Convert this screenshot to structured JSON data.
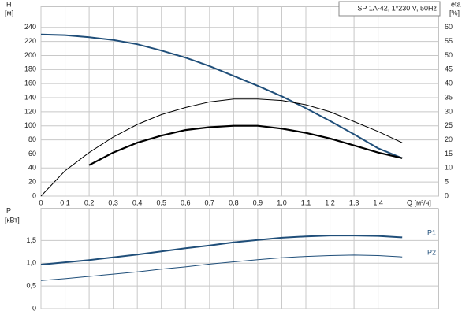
{
  "chart_data": [
    {
      "type": "line",
      "title": "SP 1A-42, 1*230 V, 50Hz",
      "y_label": "H",
      "y_unit": "[м]",
      "y2_label": "eta",
      "y2_unit": "[%]",
      "x_label": "Q [м³/ч]",
      "x": [
        0,
        0.1,
        0.2,
        0.3,
        0.4,
        0.5,
        0.6,
        0.7,
        0.8,
        0.9,
        1.0,
        1.1,
        1.2,
        1.3,
        1.4,
        1.5
      ],
      "xlim": [
        0,
        1.65
      ],
      "xticks": [
        0,
        {
          "value": 0.1,
          "label": "0,1"
        },
        {
          "value": 0.2,
          "label": "0,2"
        },
        {
          "value": 0.3,
          "label": "0,3"
        },
        {
          "value": 0.4,
          "label": "0,4"
        },
        {
          "value": 0.5,
          "label": "0,5"
        },
        {
          "value": 0.6,
          "label": "0,6"
        },
        {
          "value": 0.7,
          "label": "0,7"
        },
        {
          "value": 0.8,
          "label": "0,8"
        },
        {
          "value": 0.9,
          "label": "0,9"
        },
        {
          "value": 1.0,
          "label": "1,0"
        },
        {
          "value": 1.1,
          "label": "1,1"
        },
        {
          "value": 1.2,
          "label": "1,2"
        },
        {
          "value": 1.3,
          "label": "1,3"
        },
        {
          "value": 1.4,
          "label": "1,4"
        }
      ],
      "ylim": [
        0,
        270
      ],
      "yticks": [
        0,
        20,
        40,
        60,
        80,
        100,
        120,
        140,
        160,
        180,
        200,
        220,
        240
      ],
      "y2lim": [
        0,
        67.5
      ],
      "y2ticks": [
        0,
        5,
        10,
        15,
        20,
        25,
        30,
        35,
        40,
        45,
        50,
        55,
        60
      ],
      "grid": true,
      "series": [
        {
          "color": "#1f4e79",
          "line_width": 2,
          "values": [
            230,
            229,
            226,
            222,
            216,
            207,
            197,
            185,
            171,
            157,
            142,
            125,
            107,
            88,
            68,
            54
          ]
        },
        {
          "color": "#000000",
          "line_width": 1,
          "axis": "y2",
          "values": [
            0,
            9,
            15.5,
            21,
            25.5,
            29,
            31.5,
            33.5,
            34.5,
            34.5,
            34,
            32.5,
            30,
            26.5,
            23,
            19
          ]
        },
        {
          "color": "#000000",
          "line_width": 2.2,
          "axis": "y2",
          "values": [
            null,
            null,
            11,
            15.5,
            19,
            21.5,
            23.5,
            24.5,
            25,
            25,
            24,
            22.5,
            20.5,
            18,
            15.5,
            13.5
          ]
        }
      ]
    },
    {
      "type": "line",
      "y_label": "P",
      "y_unit": "[кВт]",
      "x": [
        0,
        0.1,
        0.2,
        0.3,
        0.4,
        0.5,
        0.6,
        0.7,
        0.8,
        0.9,
        1.0,
        1.1,
        1.2,
        1.3,
        1.4,
        1.5
      ],
      "xlim": [
        0,
        1.65
      ],
      "ylim": [
        0,
        2.2
      ],
      "yticks": [
        0,
        {
          "value": 0.5,
          "label": "0,5"
        },
        {
          "value": 1.0,
          "label": "1,0"
        },
        {
          "value": 1.5,
          "label": "1,5"
        }
      ],
      "grid": true,
      "series": [
        {
          "name": "P1",
          "color": "#1f4e79",
          "line_width": 2,
          "values": [
            0.97,
            1.02,
            1.07,
            1.13,
            1.19,
            1.26,
            1.33,
            1.39,
            1.46,
            1.51,
            1.56,
            1.59,
            1.61,
            1.61,
            1.6,
            1.57
          ]
        },
        {
          "name": "P2",
          "color": "#1f4e79",
          "line_width": 1,
          "values": [
            0.62,
            0.66,
            0.71,
            0.76,
            0.81,
            0.87,
            0.92,
            0.98,
            1.03,
            1.08,
            1.12,
            1.15,
            1.17,
            1.18,
            1.17,
            1.14
          ]
        }
      ]
    }
  ]
}
